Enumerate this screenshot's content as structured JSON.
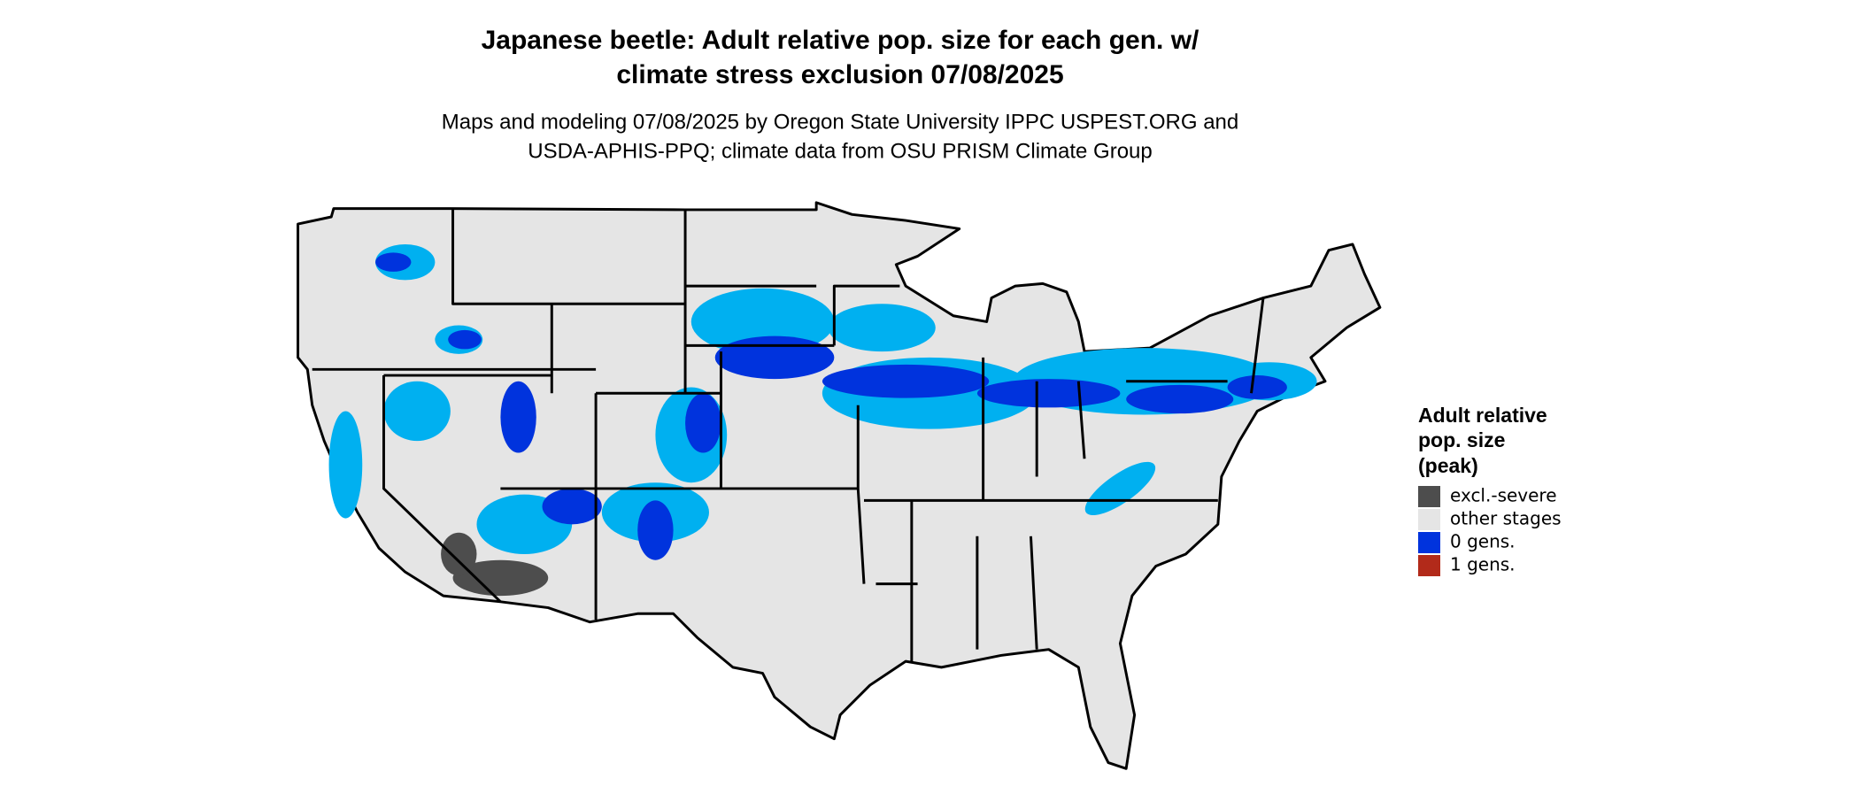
{
  "title": [
    "Japanese beetle: Adult relative pop. size for each gen. w/",
    "climate stress exclusion 07/08/2025"
  ],
  "subtitle": [
    "Maps and modeling 07/08/2025 by Oregon State University IPPC USPEST.ORG and",
    "USDA-APHIS-PPQ; climate data from OSU PRISM Climate Group"
  ],
  "legend": {
    "title": [
      "Adult relative",
      "pop. size",
      "(peak)"
    ],
    "items": [
      {
        "label": "excl.-severe",
        "color": "#4d4d4d"
      },
      {
        "label": "other stages",
        "color": "#e5e5e5"
      },
      {
        "label": "0 gens.",
        "color": "#0033dd"
      },
      {
        "label": "1 gens.",
        "color": "#b22a1a"
      }
    ]
  }
}
